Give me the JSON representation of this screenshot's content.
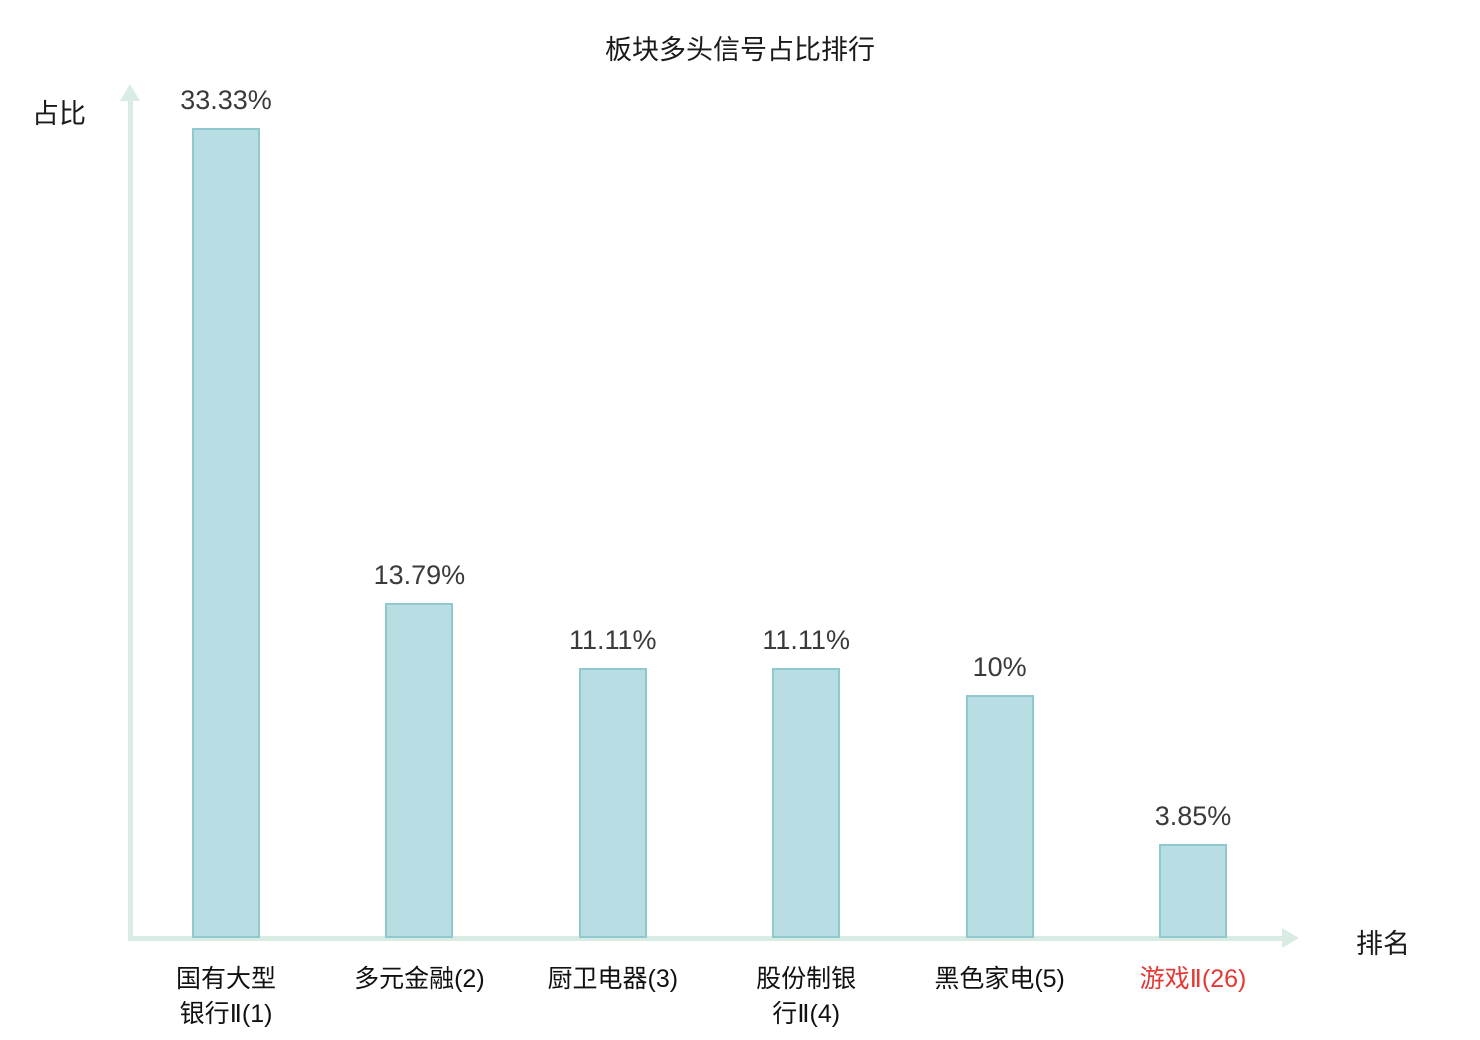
{
  "title": "板块多头信号占比排行",
  "chart_data": {
    "type": "bar",
    "title": "板块多头信号占比排行",
    "xlabel": "排名",
    "ylabel": "占比",
    "categories": [
      "国有大型\n银行Ⅱ(1)",
      "多元金融(2)",
      "厨卫电器(3)",
      "股份制银\n行Ⅱ(4)",
      "黑色家电(5)",
      "游戏Ⅱ(26)"
    ],
    "values": [
      33.33,
      13.79,
      11.11,
      11.11,
      10,
      3.85
    ],
    "value_labels": [
      "33.33%",
      "13.79%",
      "11.11%",
      "11.11%",
      "10%",
      "3.85%"
    ],
    "highlight_index": 5,
    "ylim": [
      0,
      34.7
    ],
    "grid": "off",
    "legend": "none",
    "colors": {
      "bar_fill": "#b8dde3",
      "bar_border": "#90c8d0",
      "axis": "#d8ece4",
      "category_label": "#111111",
      "value_label": "#3a3a3a",
      "highlight_label": "#e53935",
      "title": "#1a1a1a"
    }
  }
}
